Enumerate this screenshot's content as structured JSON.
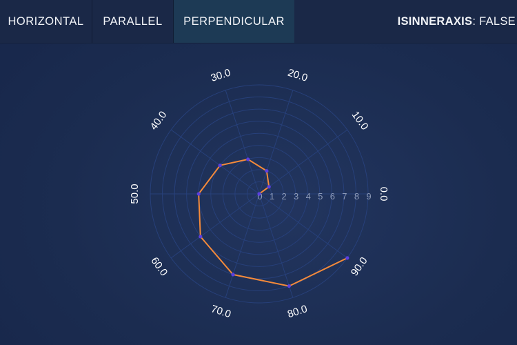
{
  "toolbar": {
    "tabs": [
      {
        "label": "HORIZONTAL",
        "active": false
      },
      {
        "label": "PARALLEL",
        "active": false
      },
      {
        "label": "PERPENDICULAR",
        "active": true
      }
    ],
    "option_key": "ISINNERAXIS",
    "option_sep": ": ",
    "option_value": "FALSE"
  },
  "colors": {
    "line": "#f58a3a",
    "marker": "#5b3fe0",
    "grid": "#27407a",
    "radial_tick": "#8e9bb8",
    "angular_tick": "#ffffff"
  },
  "chart_data": {
    "type": "polar-line",
    "title": "",
    "angular_ticks": [
      "0.0",
      "10.0",
      "20.0",
      "30.0",
      "40.0",
      "50.0",
      "60.0",
      "70.0",
      "80.0",
      "90.0"
    ],
    "angular_range": [
      0,
      100
    ],
    "angular_direction": "counterclockwise",
    "radial_ticks": [
      "0",
      "1",
      "2",
      "3",
      "4",
      "5",
      "6",
      "7",
      "8",
      "9"
    ],
    "radial_range": [
      0,
      9
    ],
    "series": [
      {
        "x": [
          0,
          10,
          20,
          30,
          40,
          50,
          60,
          70,
          80,
          90
        ],
        "y": [
          0,
          1,
          2,
          3,
          4,
          5,
          6,
          7,
          8,
          9
        ]
      }
    ]
  }
}
